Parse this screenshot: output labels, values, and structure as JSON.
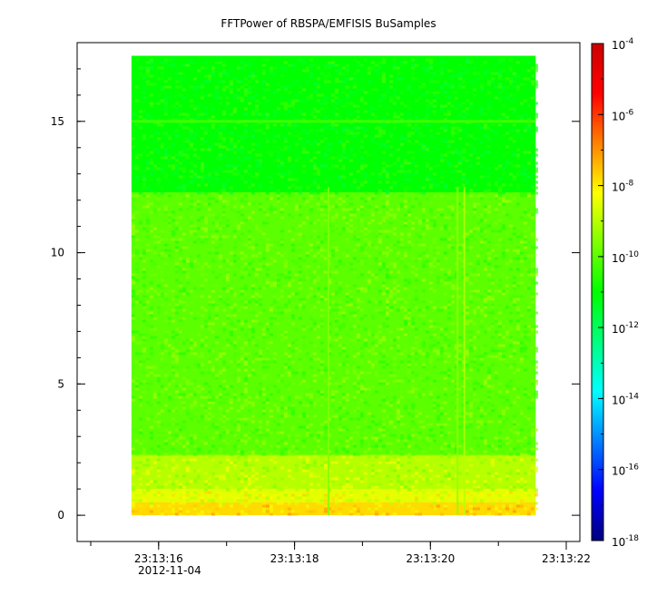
{
  "chart_data": {
    "type": "heatmap",
    "title": "FFTPower of RBSPA/EMFISIS  BuSamples",
    "xlabel": "",
    "ylabel": "",
    "x_axis": {
      "type": "time",
      "range": [
        "23:13:14.800",
        "23:13:22.200"
      ],
      "ticks": [
        {
          "value": "23:13:16",
          "label": "23:13:16"
        },
        {
          "value": "23:13:18",
          "label": "23:13:18"
        },
        {
          "value": "23:13:20",
          "label": "23:13:20"
        },
        {
          "value": "23:13:22",
          "label": "23:13:22"
        }
      ],
      "date_label": "2012-11-04"
    },
    "y_axis": {
      "range": [
        -1,
        18
      ],
      "ticks": [
        {
          "value": 0,
          "label": "0"
        },
        {
          "value": 5,
          "label": "5"
        },
        {
          "value": 10,
          "label": "10"
        },
        {
          "value": 15,
          "label": "15"
        }
      ]
    },
    "colorbar": {
      "scale": "log",
      "range": [
        1e-18,
        0.0001
      ],
      "colormap": [
        "#00007f",
        "#0000ff",
        "#0080ff",
        "#00ffff",
        "#00ff80",
        "#00ff00",
        "#80ff00",
        "#ffff00",
        "#ff8000",
        "#ff0000",
        "#cc0000"
      ],
      "ticks": [
        {
          "value": -4,
          "base": "10",
          "exp": "-4"
        },
        {
          "value": -6,
          "base": "10",
          "exp": "-6"
        },
        {
          "value": -8,
          "base": "10",
          "exp": "-8"
        },
        {
          "value": -10,
          "base": "10",
          "exp": "-10"
        },
        {
          "value": -12,
          "base": "10",
          "exp": "-12"
        },
        {
          "value": -14,
          "base": "10",
          "exp": "-14"
        },
        {
          "value": -16,
          "base": "10",
          "exp": "-16"
        },
        {
          "value": -18,
          "base": "10",
          "exp": "-18"
        }
      ]
    },
    "data_extent": {
      "time_start": "23:13:15.600",
      "time_end": "23:13:21.550",
      "freq_min": 0,
      "freq_max": 17.5
    },
    "bands_log10_power": [
      {
        "freq_range": [
          0,
          0.5
        ],
        "level": -7.8
      },
      {
        "freq_range": [
          0.5,
          1.0
        ],
        "level": -8.5
      },
      {
        "freq_range": [
          1.0,
          2.3
        ],
        "level": -9.0
      },
      {
        "freq_range": [
          2.3,
          12.3
        ],
        "level": -10.0
      },
      {
        "freq_range": [
          12.3,
          17.5
        ],
        "level": -11.0
      }
    ],
    "lines": [
      {
        "kind": "horizontal",
        "freq": 15.0,
        "level": -10.3
      },
      {
        "kind": "vertical",
        "time": "23:13:18.500",
        "level": -9.6
      },
      {
        "kind": "vertical",
        "time": "23:13:20.400",
        "level": -9.4
      },
      {
        "kind": "vertical",
        "time": "23:13:20.500",
        "level": -9.0
      }
    ]
  }
}
